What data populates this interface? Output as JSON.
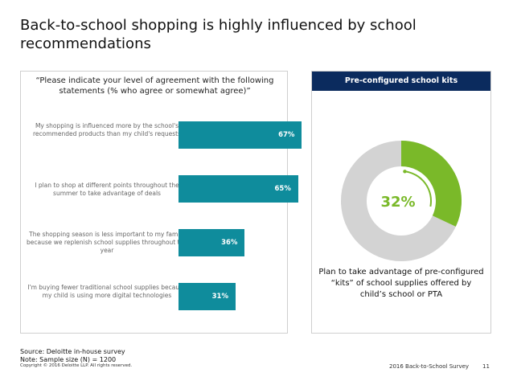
{
  "title": "Back-to-school shopping is highly influenced by school recommendations",
  "left_panel": {
    "question": "“Please indicate your level of agreement with the following statements (% who agree or somewhat agree)”"
  },
  "chart_data": [
    {
      "type": "bar",
      "orientation": "horizontal",
      "categories": [
        "My shopping is influenced more by the school's recommended products than my child's requests",
        "I plan to shop at different points throughout the summer to take advantage of deals",
        "The shopping season is less important to my family because we replenish school supplies throughout the year",
        "I'm buying fewer traditional school supplies because my child is using more digital technologies"
      ],
      "values": [
        67,
        65,
        36,
        31
      ],
      "value_labels": [
        "67%",
        "65%",
        "36%",
        "31%"
      ],
      "unit": "%",
      "xlim": [
        0,
        100
      ],
      "color": "#0f8c9c"
    },
    {
      "type": "pie",
      "variant": "donut",
      "title": "Pre-configured school kits",
      "values": [
        32,
        68
      ],
      "center_label": "32%",
      "colors": [
        "#7ab929",
        "#d3d3d3"
      ],
      "caption": "Plan to take advantage of pre-configured “kits” of school supplies offered by child’s school or PTA"
    }
  ],
  "footer": {
    "source": "Source: Deloitte in-house survey",
    "note": "Note:  Sample size (N) = 1200",
    "copyright": "Copyright © 2016 Deloitte LLP. All rights reserved.",
    "survey": "2016 Back-to-School Survey",
    "page": "11"
  }
}
